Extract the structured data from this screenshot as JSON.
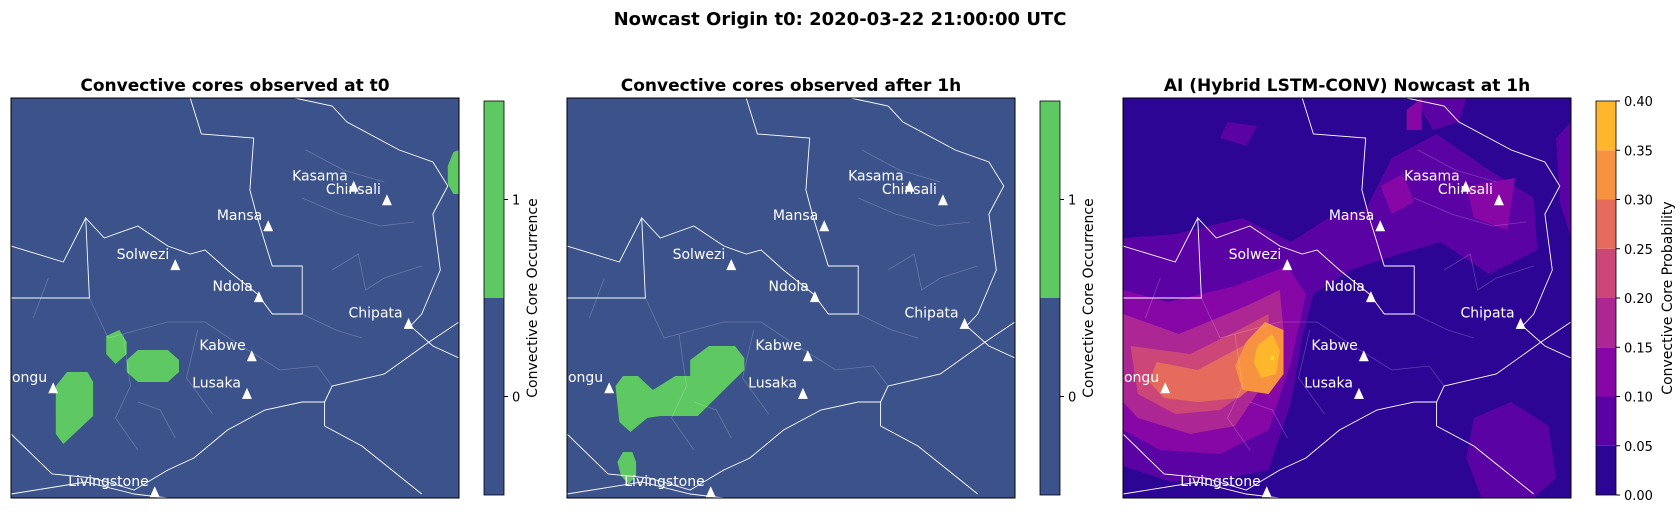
{
  "suptitle": "Nowcast Origin t0: 2020-03-22 21:00:00 UTC",
  "colors": {
    "no_core": "#3b528b",
    "core": "#5ec962",
    "city_text": "#ffffff",
    "border": "#ffffff",
    "prob_levels": [
      "#2d0594",
      "#5a02a3",
      "#8707a6",
      "#ac2694",
      "#cc4778",
      "#e56b5d",
      "#f79241",
      "#feb72d",
      "#f0f921"
    ]
  },
  "cities": [
    {
      "name": "Kasama",
      "lon": 31.18,
      "lat": -10.21
    },
    {
      "name": "Chinsali",
      "lon": 32.07,
      "lat": -10.55
    },
    {
      "name": "Mansa",
      "lon": 28.89,
      "lat": -11.2
    },
    {
      "name": "Solwezi",
      "lon": 26.4,
      "lat": -12.17
    },
    {
      "name": "Ndola",
      "lon": 28.64,
      "lat": -12.97
    },
    {
      "name": "Chipata",
      "lon": 32.65,
      "lat": -13.64
    },
    {
      "name": "Kabwe",
      "lon": 28.45,
      "lat": -14.45
    },
    {
      "name": "Mongu",
      "lon": 23.13,
      "lat": -15.25
    },
    {
      "name": "Lusaka",
      "lon": 28.32,
      "lat": -15.39
    },
    {
      "name": "Livingstone",
      "lon": 25.85,
      "lat": -17.85
    }
  ],
  "chart_data": [
    {
      "type": "heatmap",
      "title": "Convective cores observed at t0",
      "colorbar_label": "Convective Core Occurrence",
      "colorbar_ticks": [
        "0",
        "1"
      ],
      "legend": "right",
      "core_regions": [
        {
          "label": "core",
          "lon": [
            24.55,
            25.1
          ],
          "lat": [
            -13.8,
            -14.6
          ]
        },
        {
          "label": "core",
          "lon": [
            25.1,
            26.5
          ],
          "lat": [
            -14.3,
            -15.1
          ]
        },
        {
          "label": "core",
          "lon": [
            23.2,
            24.2
          ],
          "lat": [
            -14.9,
            -16.6
          ]
        },
        {
          "label": "core",
          "lon": [
            33.6,
            33.9
          ],
          "lat": [
            -9.6,
            -10.4
          ]
        }
      ]
    },
    {
      "type": "heatmap",
      "title": "Convective cores observed after 1h",
      "colorbar_label": "Convective Core Occurrence",
      "colorbar_ticks": [
        "0",
        "1"
      ],
      "legend": "right",
      "core_regions": [
        {
          "label": "core",
          "lon": [
            23.3,
            25.0
          ],
          "lat": [
            -15.0,
            -16.2
          ]
        },
        {
          "label": "core",
          "lon": [
            25.0,
            26.7
          ],
          "lat": [
            -14.2,
            -15.7
          ]
        },
        {
          "label": "core",
          "lon": [
            23.3,
            23.8
          ],
          "lat": [
            -16.8,
            -17.6
          ]
        }
      ]
    },
    {
      "type": "heatmap",
      "title": "AI (Hybrid LSTM-CONV) Nowcast at 1h",
      "colorbar_label": "Convective Core Probability",
      "colorbar_ticks": [
        "0.00",
        "0.05",
        "0.10",
        "0.15",
        "0.20",
        "0.25",
        "0.30",
        "0.35",
        "0.40"
      ],
      "levels": [
        0,
        0.05,
        0.1,
        0.15,
        0.2,
        0.25,
        0.3,
        0.35,
        0.4
      ],
      "legend": "right",
      "max_probability_location": {
        "lon": 26.0,
        "lat": -14.5,
        "value": 0.37
      },
      "secondary_maximum": {
        "lon": 23.6,
        "lat": -15.1,
        "value": 0.22
      }
    }
  ]
}
